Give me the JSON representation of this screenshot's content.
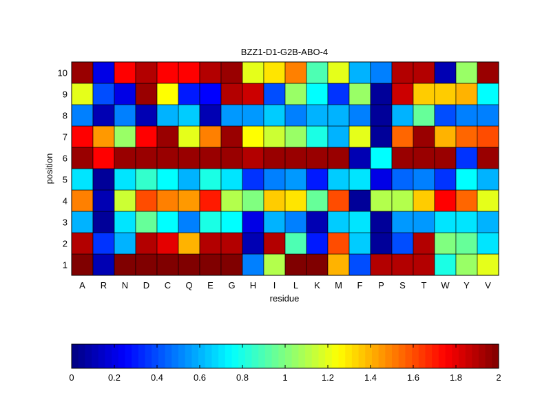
{
  "chart_data": {
    "type": "heatmap",
    "title": "BZZ1-D1-G2B-ABO-4",
    "xlabel": "residue",
    "ylabel": "position",
    "x_categories": [
      "A",
      "R",
      "N",
      "D",
      "C",
      "Q",
      "E",
      "G",
      "H",
      "I",
      "L",
      "K",
      "M",
      "F",
      "P",
      "S",
      "T",
      "W",
      "Y",
      "V"
    ],
    "y_categories": [
      "1",
      "2",
      "3",
      "4",
      "5",
      "6",
      "7",
      "8",
      "9",
      "10"
    ],
    "colormap": "jet",
    "clim": [
      0,
      2
    ],
    "colorbar": {
      "placement": "bottom",
      "ticks": [
        0,
        0.2,
        0.4,
        0.6,
        0.8,
        1,
        1.2,
        1.4,
        1.6,
        1.8,
        2
      ],
      "tick_labels": [
        "0",
        "0.2",
        "0.4",
        "0.6",
        "0.8",
        "1",
        "1.2",
        "1.4",
        "1.6",
        "1.8",
        "2"
      ]
    },
    "values": [
      [
        2.0,
        0.1,
        2.0,
        2.0,
        2.0,
        2.0,
        2.0,
        2.0,
        0.5,
        1.1,
        2.0,
        2.0,
        1.4,
        0.4,
        1.9,
        1.9,
        1.9,
        0.8,
        1.05,
        1.2
      ],
      [
        1.9,
        0.35,
        0.6,
        1.9,
        1.8,
        1.4,
        1.9,
        1.9,
        0.1,
        1.9,
        0.9,
        0.3,
        1.6,
        0.65,
        0.05,
        0.4,
        1.9,
        1.0,
        0.95,
        0.7
      ],
      [
        0.6,
        0.05,
        0.7,
        0.95,
        0.75,
        0.5,
        0.8,
        0.75,
        0.2,
        0.6,
        0.5,
        0.1,
        0.65,
        0.7,
        0.05,
        0.55,
        0.55,
        0.7,
        0.7,
        0.6
      ],
      [
        1.5,
        0.1,
        1.15,
        1.6,
        1.5,
        1.45,
        1.7,
        1.1,
        1.0,
        1.35,
        1.3,
        0.95,
        1.6,
        0.05,
        1.1,
        1.1,
        1.35,
        1.75,
        1.55,
        1.2
      ],
      [
        0.7,
        0.05,
        0.7,
        0.85,
        0.75,
        0.6,
        0.8,
        0.7,
        0.35,
        0.5,
        0.55,
        0.3,
        0.65,
        0.7,
        0.2,
        0.45,
        0.5,
        0.35,
        0.75,
        0.6
      ],
      [
        1.95,
        1.75,
        1.95,
        1.95,
        1.95,
        1.95,
        1.95,
        1.95,
        1.9,
        1.95,
        1.95,
        1.95,
        1.95,
        0.1,
        0.75,
        1.95,
        1.95,
        1.95,
        0.35,
        1.95
      ],
      [
        1.75,
        1.45,
        1.05,
        1.75,
        1.95,
        1.2,
        1.5,
        1.95,
        1.25,
        1.15,
        1.05,
        0.8,
        0.6,
        1.2,
        0.05,
        1.55,
        1.95,
        1.4,
        1.55,
        1.6
      ],
      [
        0.5,
        0.1,
        0.5,
        0.1,
        0.6,
        0.65,
        0.1,
        0.55,
        0.55,
        0.65,
        0.5,
        0.6,
        0.6,
        0.5,
        0.05,
        0.6,
        0.95,
        0.4,
        0.5,
        0.5
      ],
      [
        1.2,
        0.4,
        0.2,
        1.95,
        1.25,
        0.3,
        0.25,
        1.9,
        1.85,
        0.4,
        1.05,
        0.75,
        0.35,
        1.05,
        0.05,
        1.85,
        1.35,
        1.35,
        1.4,
        0.75
      ],
      [
        1.95,
        0.2,
        1.75,
        1.9,
        1.75,
        1.75,
        1.9,
        1.95,
        1.2,
        1.3,
        1.5,
        0.9,
        1.2,
        0.6,
        0.5,
        1.9,
        1.9,
        0.1,
        1.05,
        1.95
      ]
    ]
  }
}
